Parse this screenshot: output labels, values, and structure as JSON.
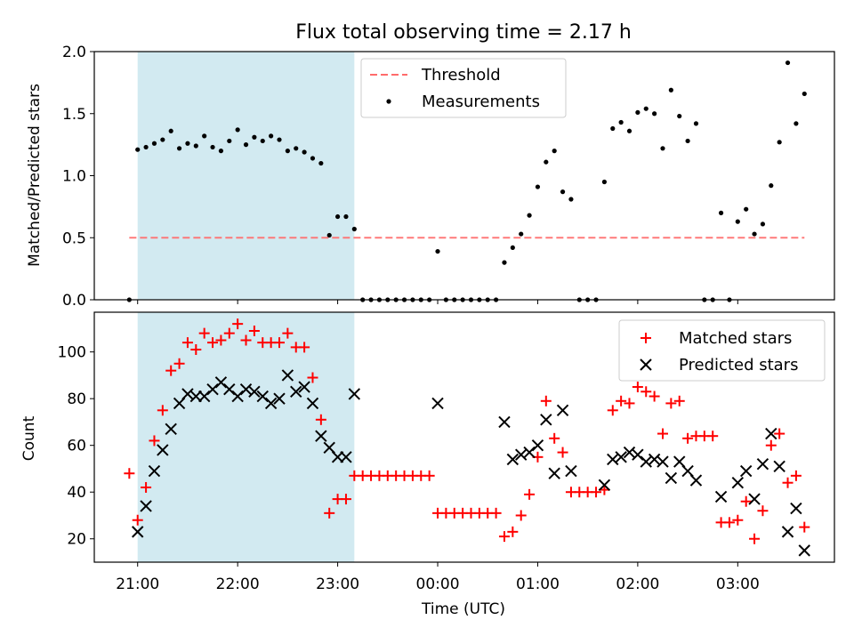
{
  "chart_data": [
    {
      "type": "scatter",
      "title": "Flux total observing time = 2.17 h",
      "xlabel": "",
      "ylabel": "Matched/Predicted stars",
      "xlim": [
        "20:34",
        "03:58"
      ],
      "ylim": [
        0,
        2.0
      ],
      "yticks": [
        "0.0",
        "0.5",
        "1.0",
        "1.5",
        "2.0"
      ],
      "shaded_span": [
        "21:00",
        "23:10"
      ],
      "shade_color": "#add8e6",
      "legend": {
        "placement": "top-center",
        "entries": [
          {
            "label": "Threshold",
            "color": "#ff6b6b",
            "style": "dashed-line"
          },
          {
            "label": "Measurements",
            "color": "#000000",
            "style": "dot"
          }
        ]
      },
      "threshold": {
        "y": 0.5,
        "x_start": "20:55",
        "x_end": "03:40"
      },
      "series": [
        {
          "name": "Measurements",
          "color": "#000000",
          "points": [
            [
              "20:55",
              0.0
            ],
            [
              "21:00",
              1.21
            ],
            [
              "21:05",
              1.23
            ],
            [
              "21:10",
              1.26
            ],
            [
              "21:15",
              1.29
            ],
            [
              "21:20",
              1.36
            ],
            [
              "21:25",
              1.22
            ],
            [
              "21:30",
              1.26
            ],
            [
              "21:35",
              1.24
            ],
            [
              "21:40",
              1.32
            ],
            [
              "21:45",
              1.23
            ],
            [
              "21:50",
              1.2
            ],
            [
              "21:55",
              1.28
            ],
            [
              "22:00",
              1.37
            ],
            [
              "22:05",
              1.25
            ],
            [
              "22:10",
              1.31
            ],
            [
              "22:15",
              1.28
            ],
            [
              "22:20",
              1.32
            ],
            [
              "22:25",
              1.29
            ],
            [
              "22:30",
              1.2
            ],
            [
              "22:35",
              1.22
            ],
            [
              "22:40",
              1.19
            ],
            [
              "22:45",
              1.14
            ],
            [
              "22:50",
              1.1
            ],
            [
              "22:55",
              0.52
            ],
            [
              "23:00",
              0.67
            ],
            [
              "23:05",
              0.67
            ],
            [
              "23:10",
              0.57
            ],
            [
              "23:15",
              0.0
            ],
            [
              "23:20",
              0.0
            ],
            [
              "23:25",
              0.0
            ],
            [
              "23:30",
              0.0
            ],
            [
              "23:35",
              0.0
            ],
            [
              "23:40",
              0.0
            ],
            [
              "23:45",
              0.0
            ],
            [
              "23:50",
              0.0
            ],
            [
              "23:55",
              0.0
            ],
            [
              "00:00",
              0.39
            ],
            [
              "00:05",
              0.0
            ],
            [
              "00:10",
              0.0
            ],
            [
              "00:15",
              0.0
            ],
            [
              "00:20",
              0.0
            ],
            [
              "00:25",
              0.0
            ],
            [
              "00:30",
              0.0
            ],
            [
              "00:35",
              0.0
            ],
            [
              "00:40",
              0.3
            ],
            [
              "00:45",
              0.42
            ],
            [
              "00:50",
              0.53
            ],
            [
              "00:55",
              0.68
            ],
            [
              "01:00",
              0.91
            ],
            [
              "01:05",
              1.11
            ],
            [
              "01:10",
              1.2
            ],
            [
              "01:15",
              0.87
            ],
            [
              "01:20",
              0.81
            ],
            [
              "01:25",
              0.0
            ],
            [
              "01:30",
              0.0
            ],
            [
              "01:35",
              0.0
            ],
            [
              "01:40",
              0.95
            ],
            [
              "01:45",
              1.38
            ],
            [
              "01:50",
              1.43
            ],
            [
              "01:55",
              1.36
            ],
            [
              "02:00",
              1.51
            ],
            [
              "02:05",
              1.54
            ],
            [
              "02:10",
              1.5
            ],
            [
              "02:15",
              1.22
            ],
            [
              "02:20",
              1.69
            ],
            [
              "02:25",
              1.48
            ],
            [
              "02:30",
              1.28
            ],
            [
              "02:35",
              1.42
            ],
            [
              "02:40",
              0.0
            ],
            [
              "02:45",
              0.0
            ],
            [
              "02:50",
              0.7
            ],
            [
              "02:55",
              0.0
            ],
            [
              "03:00",
              0.63
            ],
            [
              "03:05",
              0.73
            ],
            [
              "03:10",
              0.53
            ],
            [
              "03:15",
              0.61
            ],
            [
              "03:20",
              0.92
            ],
            [
              "03:25",
              1.27
            ],
            [
              "03:30",
              1.91
            ],
            [
              "03:35",
              1.42
            ],
            [
              "03:40",
              1.66
            ]
          ]
        }
      ]
    },
    {
      "type": "scatter",
      "title": "",
      "xlabel": "Time (UTC)",
      "ylabel": "Count",
      "xlim": [
        "20:34",
        "03:58"
      ],
      "ylim": [
        10,
        117
      ],
      "yticks": [
        "20",
        "40",
        "60",
        "80",
        "100"
      ],
      "xticks": [
        "21:00",
        "22:00",
        "23:00",
        "00:00",
        "01:00",
        "02:00",
        "03:00"
      ],
      "shaded_span": [
        "21:00",
        "23:10"
      ],
      "shade_color": "#add8e6",
      "legend": {
        "placement": "top-right",
        "entries": [
          {
            "label": "Matched stars",
            "color": "#ff0000",
            "style": "plus"
          },
          {
            "label": "Predicted stars",
            "color": "#000000",
            "style": "x"
          }
        ]
      },
      "series": [
        {
          "name": "Matched stars",
          "color": "#ff0000",
          "marker": "plus",
          "points": [
            [
              "20:55",
              48
            ],
            [
              "21:00",
              28
            ],
            [
              "21:05",
              42
            ],
            [
              "21:10",
              62
            ],
            [
              "21:15",
              75
            ],
            [
              "21:20",
              92
            ],
            [
              "21:25",
              95
            ],
            [
              "21:30",
              104
            ],
            [
              "21:35",
              101
            ],
            [
              "21:40",
              108
            ],
            [
              "21:45",
              104
            ],
            [
              "21:50",
              105
            ],
            [
              "21:55",
              108
            ],
            [
              "22:00",
              112
            ],
            [
              "22:05",
              105
            ],
            [
              "22:10",
              109
            ],
            [
              "22:15",
              104
            ],
            [
              "22:20",
              104
            ],
            [
              "22:25",
              104
            ],
            [
              "22:30",
              108
            ],
            [
              "22:35",
              102
            ],
            [
              "22:40",
              102
            ],
            [
              "22:45",
              89
            ],
            [
              "22:50",
              71
            ],
            [
              "22:55",
              31
            ],
            [
              "23:00",
              37
            ],
            [
              "23:05",
              37
            ],
            [
              "23:10",
              47
            ],
            [
              "23:15",
              47
            ],
            [
              "23:20",
              47
            ],
            [
              "23:25",
              47
            ],
            [
              "23:30",
              47
            ],
            [
              "23:35",
              47
            ],
            [
              "23:40",
              47
            ],
            [
              "23:45",
              47
            ],
            [
              "23:50",
              47
            ],
            [
              "23:55",
              47
            ],
            [
              "00:00",
              31
            ],
            [
              "00:05",
              31
            ],
            [
              "00:10",
              31
            ],
            [
              "00:15",
              31
            ],
            [
              "00:20",
              31
            ],
            [
              "00:25",
              31
            ],
            [
              "00:30",
              31
            ],
            [
              "00:35",
              31
            ],
            [
              "00:40",
              21
            ],
            [
              "00:45",
              23
            ],
            [
              "00:50",
              30
            ],
            [
              "00:55",
              39
            ],
            [
              "01:00",
              55
            ],
            [
              "01:05",
              79
            ],
            [
              "01:10",
              63
            ],
            [
              "01:15",
              57
            ],
            [
              "01:20",
              40
            ],
            [
              "01:25",
              40
            ],
            [
              "01:30",
              40
            ],
            [
              "01:35",
              40
            ],
            [
              "01:40",
              41
            ],
            [
              "01:45",
              75
            ],
            [
              "01:50",
              79
            ],
            [
              "01:55",
              78
            ],
            [
              "02:00",
              85
            ],
            [
              "02:05",
              83
            ],
            [
              "02:10",
              81
            ],
            [
              "02:15",
              65
            ],
            [
              "02:20",
              78
            ],
            [
              "02:25",
              79
            ],
            [
              "02:30",
              63
            ],
            [
              "02:35",
              64
            ],
            [
              "02:40",
              64
            ],
            [
              "02:45",
              64
            ],
            [
              "02:50",
              27
            ],
            [
              "02:55",
              27
            ],
            [
              "03:00",
              28
            ],
            [
              "03:05",
              36
            ],
            [
              "03:10",
              20
            ],
            [
              "03:15",
              32
            ],
            [
              "03:20",
              60
            ],
            [
              "03:25",
              65
            ],
            [
              "03:30",
              44
            ],
            [
              "03:35",
              47
            ],
            [
              "03:40",
              25
            ]
          ]
        },
        {
          "name": "Predicted stars",
          "color": "#000000",
          "marker": "x",
          "points": [
            [
              "21:00",
              23
            ],
            [
              "21:05",
              34
            ],
            [
              "21:10",
              49
            ],
            [
              "21:15",
              58
            ],
            [
              "21:20",
              67
            ],
            [
              "21:25",
              78
            ],
            [
              "21:30",
              82
            ],
            [
              "21:35",
              81
            ],
            [
              "21:40",
              81
            ],
            [
              "21:45",
              84
            ],
            [
              "21:50",
              87
            ],
            [
              "21:55",
              84
            ],
            [
              "22:00",
              81
            ],
            [
              "22:05",
              84
            ],
            [
              "22:10",
              83
            ],
            [
              "22:15",
              81
            ],
            [
              "22:20",
              78
            ],
            [
              "22:25",
              80
            ],
            [
              "22:30",
              90
            ],
            [
              "22:35",
              83
            ],
            [
              "22:40",
              85
            ],
            [
              "22:45",
              78
            ],
            [
              "22:50",
              64
            ],
            [
              "22:55",
              59
            ],
            [
              "23:00",
              55
            ],
            [
              "23:05",
              55
            ],
            [
              "23:10",
              82
            ],
            [
              "00:00",
              78
            ],
            [
              "00:40",
              70
            ],
            [
              "00:45",
              54
            ],
            [
              "00:50",
              56
            ],
            [
              "00:55",
              57
            ],
            [
              "01:00",
              60
            ],
            [
              "01:05",
              71
            ],
            [
              "01:10",
              48
            ],
            [
              "01:15",
              75
            ],
            [
              "01:20",
              49
            ],
            [
              "01:40",
              43
            ],
            [
              "01:45",
              54
            ],
            [
              "01:50",
              55
            ],
            [
              "01:55",
              57
            ],
            [
              "02:00",
              56
            ],
            [
              "02:05",
              53
            ],
            [
              "02:10",
              54
            ],
            [
              "02:15",
              53
            ],
            [
              "02:20",
              46
            ],
            [
              "02:25",
              53
            ],
            [
              "02:30",
              49
            ],
            [
              "02:35",
              45
            ],
            [
              "02:50",
              38
            ],
            [
              "03:00",
              44
            ],
            [
              "03:05",
              49
            ],
            [
              "03:10",
              37
            ],
            [
              "03:15",
              52
            ],
            [
              "03:20",
              65
            ],
            [
              "03:25",
              51
            ],
            [
              "03:30",
              23
            ],
            [
              "03:35",
              33
            ],
            [
              "03:40",
              15
            ]
          ]
        }
      ]
    }
  ]
}
